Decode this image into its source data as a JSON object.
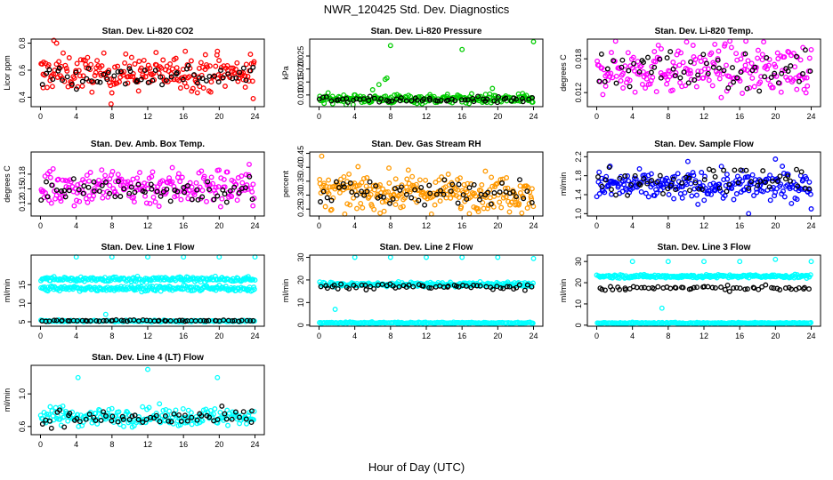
{
  "title": "NWR_120425  Std. Dev. Diagnostics",
  "xlabel": "Hour of Day (UTC)",
  "chart_data": [
    {
      "type": "scatter",
      "title": "Stan. Dev. Li-820 CO2",
      "ylabel": "Licor ppm",
      "xlim": [
        0,
        24
      ],
      "ylim": [
        0.33,
        0.83
      ],
      "xticks": [
        0,
        4,
        8,
        12,
        16,
        20,
        24
      ],
      "yticks": [
        "0.4",
        "0.6",
        "0.8"
      ],
      "ytick_values": [
        0.4,
        0.6,
        0.8
      ],
      "series": [
        {
          "color": "#ff0000",
          "mean": 0.58,
          "spread": 0.065,
          "n": 220,
          "hi": [
            [
              1.5,
              0.82
            ],
            [
              1.8,
              0.8
            ],
            [
              0.3,
              0.47
            ],
            [
              16.2,
              0.74
            ],
            [
              19.8,
              0.74
            ],
            [
              7.9,
              0.35
            ],
            [
              23.8,
              0.39
            ]
          ]
        },
        {
          "color": "#000000",
          "mean": 0.56,
          "spread": 0.045,
          "n": 60
        }
      ]
    },
    {
      "type": "scatter",
      "title": "Stan. Dev. Li-820 Pressure",
      "ylabel": "kPa",
      "xlim": [
        0,
        24
      ],
      "ylim": [
        0.0055,
        0.0315
      ],
      "xticks": [
        0,
        4,
        8,
        12,
        16,
        20,
        24
      ],
      "yticks": [
        "0.010",
        "0.015",
        "0.020",
        "0.025"
      ],
      "ytick_values": [
        0.01,
        0.015,
        0.02,
        0.025
      ],
      "series": [
        {
          "color": "#00cc00",
          "mean": 0.0085,
          "spread": 0.0009,
          "n": 220,
          "hi": [
            [
              8.0,
              0.029
            ],
            [
              16.0,
              0.0275
            ],
            [
              24.0,
              0.0305
            ],
            [
              6.7,
              0.014
            ],
            [
              7.4,
              0.016
            ],
            [
              7.6,
              0.0165
            ],
            [
              19.4,
              0.0125
            ],
            [
              6.0,
              0.012
            ]
          ]
        },
        {
          "color": "#000000",
          "mean": 0.008,
          "spread": 0.0006,
          "n": 60
        }
      ]
    },
    {
      "type": "scatter",
      "title": "Stan. Dev. Li-820 Temp.",
      "ylabel": "degrees C",
      "xlim": [
        0,
        24
      ],
      "ylim": [
        0.0095,
        0.0215
      ],
      "xticks": [
        0,
        4,
        8,
        12,
        16,
        20,
        24
      ],
      "yticks": [
        "0.012",
        "0.018"
      ],
      "ytick_values": [
        0.012,
        0.018
      ],
      "series": [
        {
          "color": "#ff00ff",
          "mean": 0.0162,
          "spread": 0.0022,
          "n": 220
        },
        {
          "color": "#000000",
          "mean": 0.016,
          "spread": 0.0016,
          "n": 60
        }
      ]
    },
    {
      "type": "scatter",
      "title": "Stan. Dev. Amb. Box Temp.",
      "ylabel": "degrees C",
      "xlim": [
        0,
        24
      ],
      "ylim": [
        0.095,
        0.225
      ],
      "xticks": [
        0,
        4,
        8,
        12,
        16,
        20,
        24
      ],
      "yticks": [
        "0.12",
        "0.15",
        "0.18"
      ],
      "ytick_values": [
        0.12,
        0.15,
        0.18
      ],
      "series": [
        {
          "color": "#ff00ff",
          "mean": 0.155,
          "spread": 0.02,
          "n": 220
        },
        {
          "color": "#000000",
          "mean": 0.148,
          "spread": 0.013,
          "n": 60
        }
      ]
    },
    {
      "type": "scatter",
      "title": "Stan. Dev. Gas Stream RH",
      "ylabel": "percent",
      "xlim": [
        0,
        24
      ],
      "ylim": [
        0.225,
        0.455
      ],
      "xticks": [
        0,
        4,
        8,
        12,
        16,
        20,
        24
      ],
      "yticks": [
        "0.25",
        "0.30",
        "0.35",
        "0.40",
        "0.45"
      ],
      "ytick_values": [
        0.25,
        0.3,
        0.35,
        0.4,
        0.45
      ],
      "series": [
        {
          "color": "#ff9900",
          "mean": 0.31,
          "spread": 0.032,
          "n": 260,
          "hi": [
            [
              0.3,
              0.44
            ]
          ]
        },
        {
          "color": "#000000",
          "mean": 0.31,
          "spread": 0.024,
          "n": 60
        }
      ]
    },
    {
      "type": "scatter",
      "title": "Stan. Dev. Sample Flow",
      "ylabel": "ml/min",
      "xlim": [
        0,
        24
      ],
      "ylim": [
        0.95,
        2.3
      ],
      "xticks": [
        0,
        4,
        8,
        12,
        16,
        20,
        24
      ],
      "yticks": [
        "1.0",
        "1.4",
        "1.8",
        "2.2"
      ],
      "ytick_values": [
        1.0,
        1.4,
        1.8,
        2.2
      ],
      "series": [
        {
          "color": "#0000ff",
          "mean": 1.58,
          "spread": 0.15,
          "n": 240,
          "hi": [
            [
              17.0,
              1.0
            ],
            [
              24.0,
              1.1
            ],
            [
              1.5,
              2.0
            ],
            [
              10.2,
              2.1
            ],
            [
              20.0,
              2.15
            ]
          ]
        },
        {
          "color": "#000000",
          "mean": 1.7,
          "spread": 0.14,
          "n": 60
        }
      ]
    },
    {
      "type": "scatter",
      "title": "Stan. Dev. Line 1 Flow",
      "ylabel": "ml/min",
      "xlim": [
        0,
        24
      ],
      "ylim": [
        3.8,
        23.0
      ],
      "xticks": [
        0,
        4,
        8,
        12,
        16,
        20,
        24
      ],
      "yticks": [
        "5",
        "10",
        "15"
      ],
      "ytick_values": [
        5,
        10,
        15
      ],
      "series": [
        {
          "color": "#00ffff",
          "mean": 16.5,
          "spread": 0.35,
          "n": 200,
          "hi": [
            [
              4,
              22.5
            ],
            [
              8,
              22.5
            ],
            [
              12,
              22.5
            ],
            [
              16,
              22.5
            ],
            [
              20,
              22.5
            ],
            [
              24,
              22.5
            ],
            [
              7.3,
              7.0
            ]
          ]
        },
        {
          "color": "#00ffff",
          "mean": 14.0,
          "spread": 0.35,
          "n": 200
        },
        {
          "color": "#00ffff",
          "mean": 5.2,
          "spread": 0.12,
          "n": 150
        },
        {
          "color": "#000000",
          "mean": 5.3,
          "spread": 0.1,
          "n": 60
        }
      ]
    },
    {
      "type": "scatter",
      "title": "Stan. Dev. Line 2 Flow",
      "ylabel": "ml/min",
      "xlim": [
        0,
        24
      ],
      "ylim": [
        -0.5,
        31
      ],
      "xticks": [
        0,
        4,
        8,
        12,
        16,
        20,
        24
      ],
      "yticks": [
        "0",
        "10",
        "20",
        "30"
      ],
      "ytick_values": [
        0,
        10,
        20,
        30
      ],
      "series": [
        {
          "color": "#00ffff",
          "mean": 18.0,
          "spread": 0.5,
          "n": 220,
          "hi": [
            [
              4,
              30
            ],
            [
              8,
              30
            ],
            [
              12,
              30
            ],
            [
              16,
              30
            ],
            [
              20,
              30
            ],
            [
              24,
              29.5
            ],
            [
              1.8,
              7
            ]
          ]
        },
        {
          "color": "#00ffff",
          "mean": 1.0,
          "spread": 0.15,
          "n": 200
        },
        {
          "color": "#000000",
          "mean": 17.0,
          "spread": 0.6,
          "n": 60
        }
      ]
    },
    {
      "type": "scatter",
      "title": "Stan. Dev. Line 3 Flow",
      "ylabel": "ml/min",
      "xlim": [
        0,
        24
      ],
      "ylim": [
        -0.5,
        33
      ],
      "xticks": [
        0,
        4,
        8,
        12,
        16,
        20,
        24
      ],
      "yticks": [
        "0",
        "10",
        "20",
        "30"
      ],
      "ytick_values": [
        0,
        10,
        20,
        30
      ],
      "series": [
        {
          "color": "#00ffff",
          "mean": 23.0,
          "spread": 0.4,
          "n": 220,
          "hi": [
            [
              4,
              30
            ],
            [
              8,
              30
            ],
            [
              12,
              30
            ],
            [
              16,
              30
            ],
            [
              20,
              31
            ],
            [
              24,
              30
            ],
            [
              7.3,
              8
            ]
          ]
        },
        {
          "color": "#00ffff",
          "mean": 1.0,
          "spread": 0.15,
          "n": 200
        },
        {
          "color": "#000000",
          "mean": 17.5,
          "spread": 0.6,
          "n": 60
        }
      ]
    },
    {
      "type": "scatter",
      "title": "Stan. Dev. Line 4 (LT) Flow",
      "ylabel": "ml/min",
      "xlim": [
        0,
        24
      ],
      "ylim": [
        0.5,
        1.35
      ],
      "xticks": [
        0,
        4,
        8,
        12,
        16,
        20,
        24
      ],
      "yticks": [
        "0.6",
        "1.0"
      ],
      "ytick_values": [
        0.6,
        1.0
      ],
      "series": [
        {
          "color": "#00ffff",
          "mean": 0.72,
          "spread": 0.055,
          "n": 220,
          "hi": [
            [
              12,
              1.3
            ],
            [
              4.2,
              1.2
            ],
            [
              19.8,
              1.2
            ],
            [
              2.5,
              0.85
            ]
          ]
        },
        {
          "color": "#000000",
          "mean": 0.7,
          "spread": 0.05,
          "n": 60
        }
      ]
    }
  ]
}
